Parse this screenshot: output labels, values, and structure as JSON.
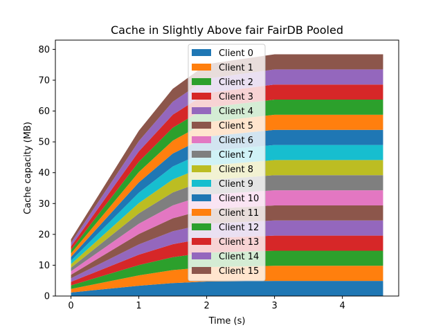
{
  "chart_data": {
    "type": "area",
    "stacked": true,
    "title": "Cache in Slightly Above fair FairDB Pooled",
    "xlabel": "Time (s)",
    "ylabel": "Cache capacity (MB)",
    "xlim": [
      -0.23,
      4.83
    ],
    "ylim": [
      0,
      83
    ],
    "xticks": [
      0,
      1,
      2,
      3,
      4
    ],
    "yticks": [
      0,
      10,
      20,
      30,
      40,
      50,
      60,
      70,
      80
    ],
    "x": [
      0,
      1,
      1.5,
      2,
      3,
      4.6
    ],
    "legend_position": "top-center",
    "series": [
      {
        "name": "Client 0",
        "color": "#1f77b4",
        "values": [
          1.15,
          3.35,
          4.2,
          4.7,
          4.9,
          4.9
        ]
      },
      {
        "name": "Client 1",
        "color": "#ff7f0e",
        "values": [
          1.15,
          3.35,
          4.2,
          4.7,
          4.9,
          4.9
        ]
      },
      {
        "name": "Client 2",
        "color": "#2ca02c",
        "values": [
          1.15,
          3.35,
          4.2,
          4.7,
          4.9,
          4.9
        ]
      },
      {
        "name": "Client 3",
        "color": "#d62728",
        "values": [
          1.15,
          3.35,
          4.2,
          4.7,
          4.9,
          4.9
        ]
      },
      {
        "name": "Client 4",
        "color": "#9467bd",
        "values": [
          1.15,
          3.35,
          4.2,
          4.7,
          4.9,
          4.9
        ]
      },
      {
        "name": "Client 5",
        "color": "#8c564b",
        "values": [
          1.15,
          3.35,
          4.2,
          4.7,
          4.9,
          4.9
        ]
      },
      {
        "name": "Client 6",
        "color": "#e377c2",
        "values": [
          1.15,
          3.35,
          4.2,
          4.7,
          4.9,
          4.9
        ]
      },
      {
        "name": "Client 7",
        "color": "#7f7f7f",
        "values": [
          1.15,
          3.35,
          4.2,
          4.7,
          4.9,
          4.9
        ]
      },
      {
        "name": "Client 8",
        "color": "#bcbd22",
        "values": [
          1.15,
          3.35,
          4.2,
          4.7,
          4.9,
          4.9
        ]
      },
      {
        "name": "Client 9",
        "color": "#17becf",
        "values": [
          1.15,
          3.35,
          4.2,
          4.7,
          4.9,
          4.9
        ]
      },
      {
        "name": "Client 10",
        "color": "#1f77b4",
        "values": [
          1.15,
          3.35,
          4.2,
          4.7,
          4.9,
          4.9
        ]
      },
      {
        "name": "Client 11",
        "color": "#ff7f0e",
        "values": [
          1.15,
          3.35,
          4.2,
          4.7,
          4.9,
          4.9
        ]
      },
      {
        "name": "Client 12",
        "color": "#2ca02c",
        "values": [
          1.15,
          3.35,
          4.2,
          4.7,
          4.9,
          4.9
        ]
      },
      {
        "name": "Client 13",
        "color": "#d62728",
        "values": [
          1.15,
          3.35,
          4.2,
          4.7,
          4.9,
          4.9
        ]
      },
      {
        "name": "Client 14",
        "color": "#9467bd",
        "values": [
          1.15,
          3.35,
          4.2,
          4.7,
          4.9,
          4.9
        ]
      },
      {
        "name": "Client 15",
        "color": "#8c564b",
        "values": [
          1.15,
          3.35,
          4.2,
          4.7,
          4.9,
          4.9
        ]
      }
    ]
  }
}
